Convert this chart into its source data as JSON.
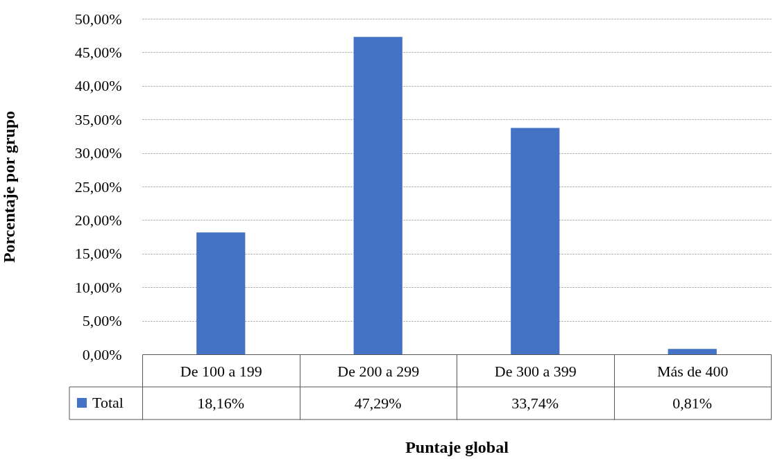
{
  "chart_data": {
    "type": "bar",
    "xlabel": "Puntaje global",
    "ylabel": "Porcentaje por grupo",
    "categories": [
      "De 100 a 199",
      "De 200 a 299",
      "De 300 a 399",
      "Más de 400"
    ],
    "series": [
      {
        "name": "Total",
        "color": "#4472c4",
        "values": [
          18.16,
          47.29,
          33.74,
          0.81
        ],
        "value_labels": [
          "18,16%",
          "47,29%",
          "33,74%",
          "0,81%"
        ]
      }
    ],
    "ylim": [
      0,
      50
    ],
    "yticks": [
      {
        "value": 0,
        "label": "0,00%"
      },
      {
        "value": 5,
        "label": "5,00%"
      },
      {
        "value": 10,
        "label": "10,00%"
      },
      {
        "value": 15,
        "label": "15,00%"
      },
      {
        "value": 20,
        "label": "20,00%"
      },
      {
        "value": 25,
        "label": "25,00%"
      },
      {
        "value": 30,
        "label": "30,00%"
      },
      {
        "value": 35,
        "label": "35,00%"
      },
      {
        "value": 40,
        "label": "40,00%"
      },
      {
        "value": 45,
        "label": "45,00%"
      },
      {
        "value": 50,
        "label": "50,00%"
      }
    ],
    "grid": "y",
    "legend": "bottom left"
  }
}
